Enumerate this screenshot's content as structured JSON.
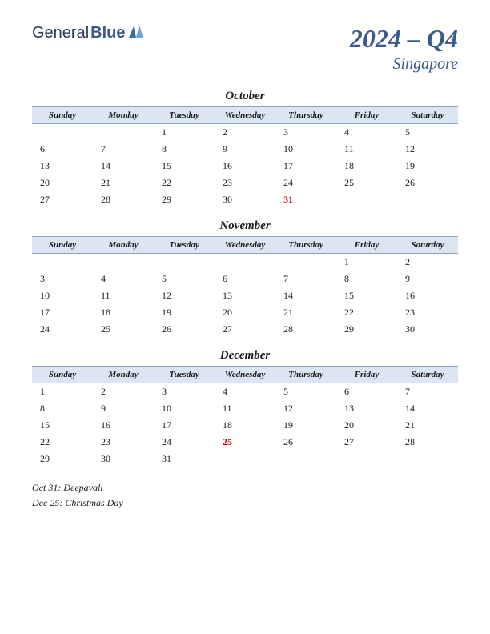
{
  "logo": {
    "part1": "General",
    "part2": "Blue"
  },
  "title": {
    "main": "2024 – Q4",
    "sub": "Singapore"
  },
  "day_headers": [
    "Sunday",
    "Monday",
    "Tuesday",
    "Wednesday",
    "Thursday",
    "Friday",
    "Saturday"
  ],
  "colors": {
    "header_bg": "#dce5f2",
    "header_border": "#8aa0c0",
    "title_color": "#3a5a8a",
    "holiday_color": "#c00000",
    "text_color": "#1a1a1a",
    "background": "#ffffff"
  },
  "months": [
    {
      "name": "October",
      "weeks": [
        [
          "",
          "",
          "1",
          "2",
          "3",
          "4",
          "5"
        ],
        [
          "6",
          "7",
          "8",
          "9",
          "10",
          "11",
          "12"
        ],
        [
          "13",
          "14",
          "15",
          "16",
          "17",
          "18",
          "19"
        ],
        [
          "20",
          "21",
          "22",
          "23",
          "24",
          "25",
          "26"
        ],
        [
          "27",
          "28",
          "29",
          "30",
          "31",
          "",
          ""
        ]
      ],
      "holidays": [
        "31"
      ]
    },
    {
      "name": "November",
      "weeks": [
        [
          "",
          "",
          "",
          "",
          "",
          "1",
          "2"
        ],
        [
          "3",
          "4",
          "5",
          "6",
          "7",
          "8",
          "9"
        ],
        [
          "10",
          "11",
          "12",
          "13",
          "14",
          "15",
          "16"
        ],
        [
          "17",
          "18",
          "19",
          "20",
          "21",
          "22",
          "23"
        ],
        [
          "24",
          "25",
          "26",
          "27",
          "28",
          "29",
          "30"
        ]
      ],
      "holidays": []
    },
    {
      "name": "December",
      "weeks": [
        [
          "1",
          "2",
          "3",
          "4",
          "5",
          "6",
          "7"
        ],
        [
          "8",
          "9",
          "10",
          "11",
          "12",
          "13",
          "14"
        ],
        [
          "15",
          "16",
          "17",
          "18",
          "19",
          "20",
          "21"
        ],
        [
          "22",
          "23",
          "24",
          "25",
          "26",
          "27",
          "28"
        ],
        [
          "29",
          "30",
          "31",
          "",
          "",
          "",
          ""
        ]
      ],
      "holidays": [
        "25"
      ]
    }
  ],
  "holiday_list": [
    "Oct 31: Deepavali",
    "Dec 25: Christmas Day"
  ]
}
